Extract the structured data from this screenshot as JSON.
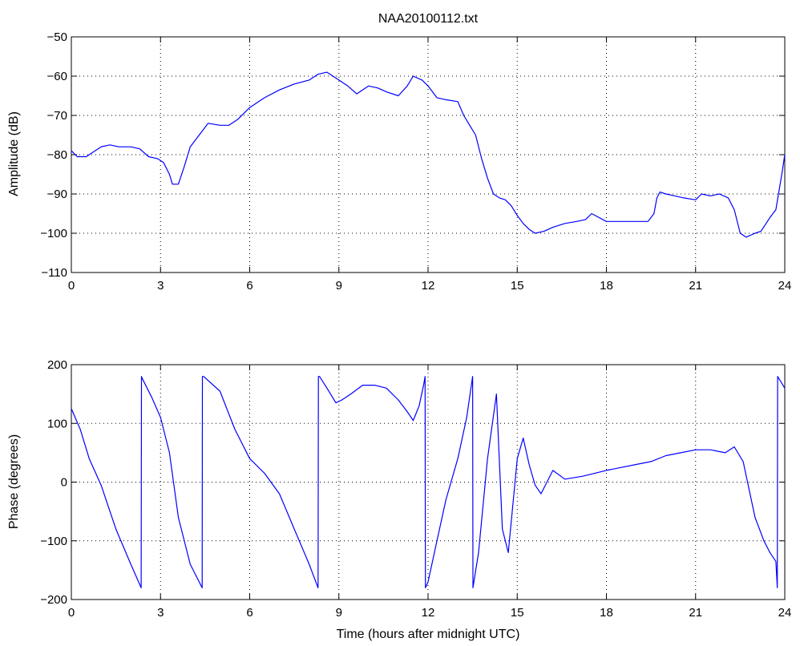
{
  "chart_data": [
    {
      "type": "line",
      "title": "NAA20100112.txt",
      "xlabel": "",
      "ylabel": "Amplitude (dB)",
      "xlim": [
        0,
        24
      ],
      "ylim": [
        -110,
        -50
      ],
      "xticks": [
        "0",
        "3",
        "6",
        "9",
        "12",
        "15",
        "18",
        "21",
        "24"
      ],
      "yticks": [
        "−50",
        "−60",
        "−70",
        "−80",
        "−90",
        "−100",
        "−110"
      ],
      "grid": true,
      "line_color": "#0000ff",
      "series": [
        {
          "x": [
            0,
            0.2,
            0.5,
            0.8,
            1.0,
            1.3,
            1.6,
            2.0,
            2.3,
            2.6,
            2.9,
            3.1,
            3.3,
            3.4,
            3.6,
            3.8,
            4.0,
            4.3,
            4.6,
            5.0,
            5.3,
            5.6,
            6.0,
            6.5,
            7.0,
            7.5,
            8.0,
            8.3,
            8.6,
            9.0,
            9.3,
            9.6,
            10.0,
            10.3,
            10.6,
            11.0,
            11.3,
            11.5,
            11.8,
            12.0,
            12.3,
            12.6,
            13.0,
            13.2,
            13.4,
            13.6,
            13.8,
            14.0,
            14.2,
            14.4,
            14.6,
            14.8,
            15.0,
            15.2,
            15.4,
            15.6,
            15.9,
            16.2,
            16.6,
            17.0,
            17.3,
            17.5,
            18.0,
            18.5,
            19.0,
            19.4,
            19.6,
            19.7,
            19.8,
            20.0,
            20.3,
            20.6,
            21.0,
            21.2,
            21.5,
            21.8,
            22.1,
            22.3,
            22.5,
            22.7,
            23.0,
            23.2,
            23.5,
            23.7,
            23.9,
            24.0
          ],
          "y": [
            -79,
            -80.5,
            -80.5,
            -79,
            -78,
            -77.5,
            -78,
            -78,
            -78.5,
            -80.5,
            -81,
            -82,
            -85,
            -87.5,
            -87.5,
            -83,
            -78,
            -75,
            -72,
            -72.5,
            -72.5,
            -71,
            -68,
            -65.5,
            -63.5,
            -62,
            -61,
            -59.5,
            -59,
            -61,
            -62.5,
            -64.5,
            -62.5,
            -63,
            -64,
            -65,
            -62.5,
            -60,
            -61,
            -62.5,
            -65.5,
            -66,
            -66.5,
            -70,
            -72.5,
            -75,
            -81,
            -86,
            -90,
            -91,
            -91.5,
            -93,
            -95.5,
            -97.5,
            -99,
            -100,
            -99.5,
            -98.5,
            -97.5,
            -97,
            -96.5,
            -95,
            -97,
            -97,
            -97,
            -97,
            -95,
            -91,
            -89.5,
            -90,
            -90.5,
            -91,
            -91.5,
            -90,
            -90.5,
            -90,
            -91,
            -94,
            -100,
            -101,
            -100,
            -99.5,
            -96,
            -94,
            -85,
            -80
          ]
        }
      ]
    },
    {
      "type": "line",
      "title": "",
      "xlabel": "Time (hours after midnight UTC)",
      "ylabel": "Phase (degrees)",
      "xlim": [
        0,
        24
      ],
      "ylim": [
        -200,
        200
      ],
      "xticks": [
        "0",
        "3",
        "6",
        "9",
        "12",
        "15",
        "18",
        "21",
        "24"
      ],
      "yticks": [
        "200",
        "100",
        "0",
        "−100",
        "−200"
      ],
      "grid": true,
      "line_color": "#0000ff",
      "series": [
        {
          "x": [
            0,
            0.3,
            0.6,
            1.0,
            1.5,
            2.0,
            2.35,
            2.36,
            2.4,
            2.7,
            3.0,
            3.3,
            3.6,
            4.0,
            4.4,
            4.41,
            4.45,
            5.0,
            5.5,
            6.0,
            6.5,
            7.0,
            7.5,
            8.0,
            8.3,
            8.31,
            8.35,
            8.6,
            8.9,
            9.1,
            9.4,
            9.8,
            10.2,
            10.6,
            11.0,
            11.3,
            11.5,
            11.7,
            11.85,
            11.9,
            11.91,
            12.0,
            12.3,
            12.6,
            13.0,
            13.3,
            13.5,
            13.51,
            13.7,
            14.0,
            14.3,
            14.5,
            14.7,
            15.0,
            15.2,
            15.4,
            15.6,
            15.8,
            16.2,
            16.6,
            17.2,
            18.0,
            19.0,
            19.5,
            20.0,
            20.5,
            21.0,
            21.5,
            22.0,
            22.3,
            22.6,
            23.0,
            23.3,
            23.5,
            23.7,
            23.75,
            23.76,
            24.0
          ],
          "y": [
            125,
            90,
            40,
            -5,
            -80,
            -140,
            -180,
            180,
            175,
            145,
            110,
            50,
            -60,
            -140,
            -180,
            180,
            180,
            155,
            90,
            40,
            15,
            -20,
            -80,
            -140,
            -180,
            180,
            180,
            160,
            135,
            140,
            150,
            165,
            165,
            160,
            140,
            120,
            105,
            130,
            165,
            180,
            -180,
            -170,
            -100,
            -30,
            40,
            110,
            180,
            -180,
            -120,
            40,
            150,
            -80,
            -120,
            40,
            75,
            30,
            -5,
            -20,
            20,
            5,
            10,
            20,
            30,
            35,
            45,
            50,
            55,
            55,
            50,
            60,
            35,
            -60,
            -100,
            -120,
            -135,
            -180,
            180,
            160
          ]
        }
      ]
    }
  ]
}
